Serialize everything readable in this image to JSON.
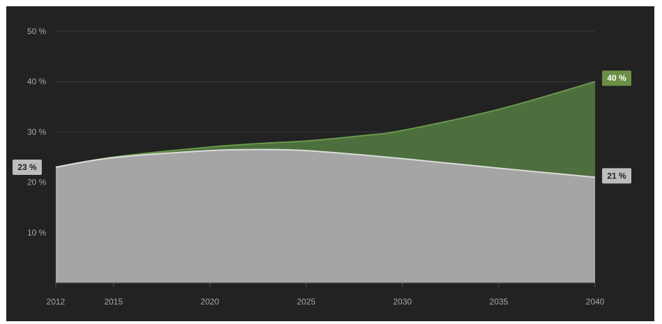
{
  "chart_data": {
    "type": "area",
    "title": "",
    "xlabel": "",
    "ylabel": "",
    "x": [
      2012,
      2015,
      2020,
      2023,
      2025,
      2028,
      2030,
      2035,
      2040
    ],
    "x_ticks": [
      "2012",
      "2015",
      "2020",
      "2025",
      "2030",
      "2035",
      "2040"
    ],
    "y_ticks": [
      "10 %",
      "20 %",
      "30 %",
      "40 %",
      "50 %"
    ],
    "ylim": [
      0,
      50
    ],
    "grid": true,
    "legend": "none",
    "series": [
      {
        "values": [
          23,
          25,
          27,
          27.8,
          28.2,
          29.3,
          30.3,
          34.5,
          40
        ],
        "color": "#4d6f3d",
        "line_color": "#6a9a4c",
        "end_label": "40 %"
      },
      {
        "values": [
          23,
          24.9,
          26.3,
          26.5,
          26.3,
          25.4,
          24.7,
          22.8,
          21
        ],
        "color": "#a5a5a5",
        "line_color": "#dcdcdc",
        "start_label": "23 %",
        "end_label": "21 %"
      }
    ],
    "colors": {
      "background": "#222222",
      "grid": "#3a3a3a",
      "green_badge": "#6a8f45",
      "grey_badge": "#bdbdbd"
    }
  }
}
